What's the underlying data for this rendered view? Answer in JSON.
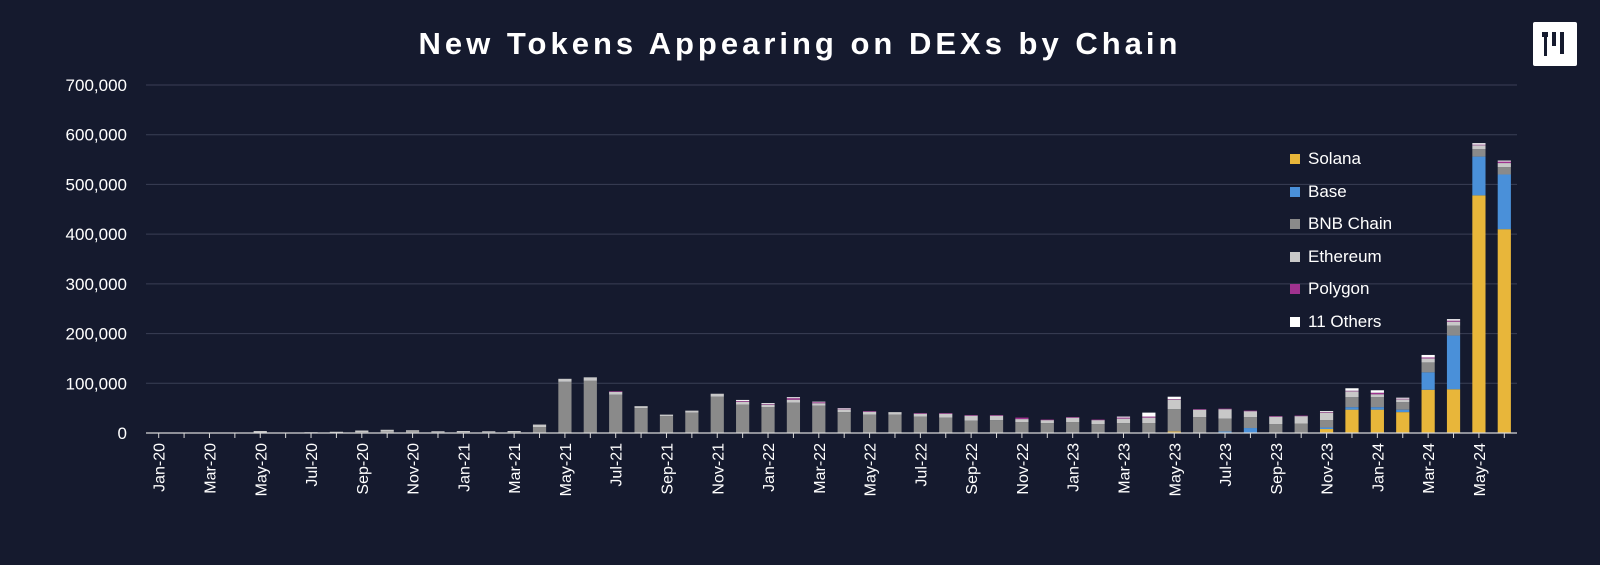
{
  "header": {
    "title": "New Tokens Appearing on DEXs by Chain",
    "logo_icon": "brand-logo-icon"
  },
  "chart_data": {
    "type": "bar",
    "stacked": true,
    "title": "New Tokens Appearing on DEXs by Chain",
    "xlabel": "",
    "ylabel": "",
    "ylim": [
      0,
      700000
    ],
    "yticks": [
      0,
      100000,
      200000,
      300000,
      400000,
      500000,
      600000,
      700000
    ],
    "ytick_labels": [
      "0",
      "100,000",
      "200,000",
      "300,000",
      "400,000",
      "500,000",
      "600,000",
      "700,000"
    ],
    "grid": true,
    "legend_position": "top-right",
    "categories": [
      "Jan-20",
      "Feb-20",
      "Mar-20",
      "Apr-20",
      "May-20",
      "Jun-20",
      "Jul-20",
      "Aug-20",
      "Sep-20",
      "Oct-20",
      "Nov-20",
      "Dec-20",
      "Jan-21",
      "Feb-21",
      "Mar-21",
      "Apr-21",
      "May-21",
      "Jun-21",
      "Jul-21",
      "Aug-21",
      "Sep-21",
      "Oct-21",
      "Nov-21",
      "Dec-21",
      "Jan-22",
      "Feb-22",
      "Mar-22",
      "Apr-22",
      "May-22",
      "Jun-22",
      "Jul-22",
      "Aug-22",
      "Sep-22",
      "Oct-22",
      "Nov-22",
      "Dec-22",
      "Jan-23",
      "Feb-23",
      "Mar-23",
      "Apr-23",
      "May-23",
      "Jun-23",
      "Jul-23",
      "Aug-23",
      "Sep-23",
      "Oct-23",
      "Nov-23",
      "Dec-23",
      "Jan-24",
      "Feb-24",
      "Mar-24",
      "Apr-24",
      "May-24",
      "Jun-24"
    ],
    "xtick_labels": [
      "Jan-20",
      "",
      "Mar-20",
      "",
      "May-20",
      "",
      "Jul-20",
      "",
      "Sep-20",
      "",
      "Nov-20",
      "",
      "Jan-21",
      "",
      "Mar-21",
      "",
      "May-21",
      "",
      "Jul-21",
      "",
      "Sep-21",
      "",
      "Nov-21",
      "",
      "Jan-22",
      "",
      "Mar-22",
      "",
      "May-22",
      "",
      "Jul-22",
      "",
      "Sep-22",
      "",
      "Nov-22",
      "",
      "Jan-23",
      "",
      "Mar-23",
      "",
      "May-23",
      "",
      "Jul-23",
      "",
      "Sep-23",
      "",
      "Nov-23",
      "",
      "Jan-24",
      "",
      "Mar-24",
      "",
      "May-24",
      ""
    ],
    "series": [
      {
        "name": "Solana",
        "color": "#e8b63a",
        "values": [
          0,
          0,
          0,
          0,
          0,
          0,
          0,
          0,
          0,
          0,
          0,
          0,
          0,
          0,
          0,
          0,
          0,
          0,
          0,
          0,
          0,
          0,
          0,
          0,
          0,
          0,
          0,
          0,
          0,
          0,
          0,
          0,
          0,
          0,
          0,
          0,
          0,
          0,
          0,
          0,
          3000,
          0,
          0,
          0,
          0,
          1000,
          8000,
          47000,
          47000,
          42000,
          87000,
          88000,
          478000,
          410000
        ]
      },
      {
        "name": "Base",
        "color": "#4a90d9",
        "values": [
          0,
          0,
          0,
          0,
          0,
          0,
          0,
          0,
          0,
          0,
          0,
          0,
          0,
          0,
          0,
          0,
          0,
          0,
          0,
          0,
          0,
          0,
          0,
          0,
          0,
          0,
          0,
          0,
          0,
          0,
          0,
          0,
          0,
          0,
          0,
          0,
          0,
          0,
          0,
          0,
          0,
          0,
          3000,
          10000,
          0,
          0,
          3000,
          5000,
          5000,
          5000,
          35000,
          108000,
          78000,
          110000
        ]
      },
      {
        "name": "BNB Chain",
        "color": "#8a8a8a",
        "values": [
          500,
          300,
          500,
          300,
          1000,
          500,
          500,
          1000,
          2000,
          3000,
          3000,
          1500,
          2000,
          1500,
          2000,
          12000,
          103000,
          105000,
          77000,
          50000,
          34000,
          41000,
          73000,
          57000,
          52000,
          61000,
          55000,
          42000,
          37000,
          37000,
          33000,
          31000,
          25000,
          26000,
          22000,
          20000,
          22000,
          18000,
          20000,
          20000,
          45000,
          32000,
          26000,
          22000,
          18000,
          18000,
          15000,
          20000,
          20000,
          15000,
          20000,
          20000,
          15000,
          15000
        ]
      },
      {
        "name": "Ethereum",
        "color": "#c8c8c8",
        "values": [
          300,
          200,
          300,
          200,
          3000,
          500,
          1000,
          1500,
          3000,
          3500,
          2500,
          2000,
          2000,
          2000,
          2000,
          5000,
          6000,
          7000,
          6000,
          4000,
          3000,
          4000,
          6000,
          6000,
          5000,
          6000,
          5000,
          6000,
          6000,
          5000,
          6000,
          8000,
          10000,
          9000,
          6000,
          6000,
          9000,
          8000,
          9000,
          11000,
          19000,
          15000,
          19000,
          12000,
          15000,
          15000,
          15000,
          12000,
          6000,
          6000,
          8000,
          8000,
          8000,
          8000
        ]
      },
      {
        "name": "Polygon",
        "color": "#a0328f",
        "values": [
          0,
          0,
          0,
          0,
          0,
          0,
          0,
          0,
          0,
          0,
          0,
          0,
          0,
          0,
          0,
          0,
          0,
          0,
          1000,
          0,
          0,
          0,
          0,
          1500,
          1000,
          3000,
          2000,
          1000,
          1000,
          0,
          1000,
          1000,
          1000,
          1000,
          3000,
          1000,
          1000,
          1000,
          2000,
          2000,
          1000,
          1000,
          1000,
          1000,
          1000,
          1000,
          1000,
          1000,
          3000,
          1000,
          2000,
          2000,
          1000,
          3000
        ]
      },
      {
        "name": "11 Others",
        "color": "#ffffff",
        "values": [
          0,
          0,
          0,
          0,
          0,
          0,
          0,
          0,
          0,
          0,
          0,
          0,
          0,
          0,
          0,
          0,
          0,
          0,
          0,
          0,
          0,
          0,
          0,
          2000,
          2000,
          2000,
          1000,
          1000,
          0,
          0,
          0,
          0,
          0,
          0,
          0,
          0,
          0,
          0,
          2000,
          8000,
          5000,
          0,
          0,
          0,
          0,
          0,
          2000,
          5000,
          5000,
          2000,
          5000,
          3000,
          3000,
          2000
        ]
      }
    ]
  }
}
